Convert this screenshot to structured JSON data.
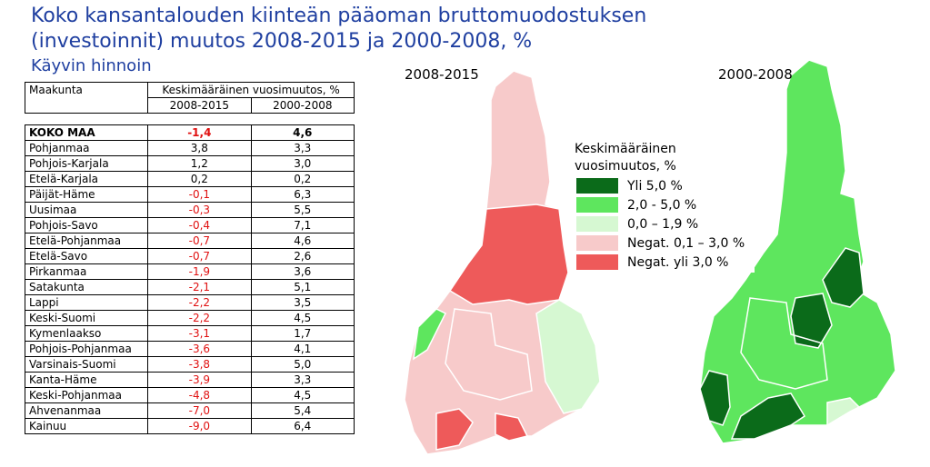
{
  "title": [
    "Koko kansantalouden kiinteän pääoman bruttomuodostuksen",
    "(investoinnit) muutos 2008-2015 ja 2000-2008, %"
  ],
  "subtitle": "Käyvin hinnoin",
  "table": {
    "header": {
      "region": "Maakunta",
      "group": "Keskimääräinen vuosimuutos, %",
      "cols": [
        "2008-2015",
        "2000-2008"
      ]
    },
    "rows": [
      [
        "KOKO MAA",
        "-1,4",
        "4,6"
      ],
      [
        "Pohjanmaa",
        "3,8",
        "3,3"
      ],
      [
        "Pohjois-Karjala",
        "1,2",
        "3,0"
      ],
      [
        "Etelä-Karjala",
        "0,2",
        "0,2"
      ],
      [
        "Päijät-Häme",
        "-0,1",
        "6,3"
      ],
      [
        "Uusimaa",
        "-0,3",
        "5,5"
      ],
      [
        "Pohjois-Savo",
        "-0,4",
        "7,1"
      ],
      [
        "Etelä-Pohjanmaa",
        "-0,7",
        "4,6"
      ],
      [
        "Etelä-Savo",
        "-0,7",
        "2,6"
      ],
      [
        "Pirkanmaa",
        "-1,9",
        "3,6"
      ],
      [
        "Satakunta",
        "-2,1",
        "5,1"
      ],
      [
        "Lappi",
        "-2,2",
        "3,5"
      ],
      [
        "Keski-Suomi",
        "-2,2",
        "4,5"
      ],
      [
        "Kymenlaakso",
        "-3,1",
        "1,7"
      ],
      [
        "Pohjois-Pohjanmaa",
        "-3,6",
        "4,1"
      ],
      [
        "Varsinais-Suomi",
        "-3,8",
        "5,0"
      ],
      [
        "Kanta-Häme",
        "-3,9",
        "3,3"
      ],
      [
        "Keski-Pohjanmaa",
        "-4,8",
        "4,5"
      ],
      [
        "Ahvenanmaa",
        "-7,0",
        "5,4"
      ],
      [
        "Kainuu",
        "-9,0",
        "6,4"
      ]
    ]
  },
  "maps": [
    {
      "label": "2008-2015"
    },
    {
      "label": "2000-2008"
    }
  ],
  "legend": {
    "title": [
      "Keskimääräinen",
      "vuosimuutos, %"
    ],
    "items": [
      {
        "label": "Yli 5,0 %",
        "color": "#0b6b1a"
      },
      {
        "label": "2,0 - 5,0 %",
        "color": "#5ee65e"
      },
      {
        "label": "0,0 – 1,9 %",
        "color": "#d6f8d2"
      },
      {
        "label": "Negat. 0,1 – 3,0 %",
        "color": "#f7caca"
      },
      {
        "label": "Negat. yli 3,0 %",
        "color": "#ee5a5a"
      }
    ]
  }
}
